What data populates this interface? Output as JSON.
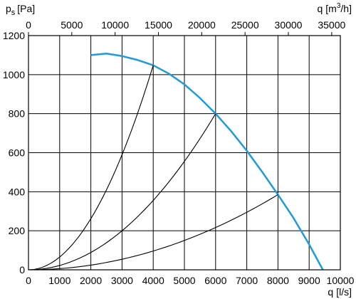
{
  "chart_data": {
    "type": "line",
    "x_bottom": {
      "label": "q",
      "unit": "[l/s]",
      "range": [
        0,
        10000
      ],
      "ticks": [
        0,
        1000,
        2000,
        3000,
        4000,
        5000,
        6000,
        7000,
        8000,
        9000,
        10000
      ]
    },
    "x_top": {
      "label": "q",
      "unit_prefix": "[m",
      "unit_sup": "3",
      "unit_suffix": "/h]",
      "ticks": [
        0,
        5000,
        10000,
        15000,
        20000,
        25000,
        30000,
        35000
      ]
    },
    "y": {
      "label": "p",
      "label_sub": "s",
      "unit": "[Pa]",
      "range": [
        0,
        1200
      ],
      "ticks": [
        0,
        200,
        400,
        600,
        800,
        1000,
        1200
      ]
    },
    "grid": true,
    "series": [
      {
        "role": "fan-curve",
        "color": "#1f9bd8",
        "x": [
          2000,
          2500,
          3000,
          3500,
          4000,
          4500,
          5000,
          5500,
          6000,
          6500,
          7000,
          7500,
          8000,
          8500,
          9000,
          9440
        ],
        "y": [
          1100,
          1108,
          1095,
          1075,
          1048,
          1005,
          950,
          880,
          800,
          710,
          610,
          500,
          385,
          265,
          130,
          0
        ]
      },
      {
        "role": "system-curve",
        "color": "#000000",
        "x_end": 4000,
        "y_end": 1048
      },
      {
        "role": "system-curve",
        "color": "#000000",
        "x_end": 6000,
        "y_end": 800
      },
      {
        "role": "system-curve",
        "color": "#000000",
        "x_end": 8000,
        "y_end": 385
      }
    ]
  }
}
